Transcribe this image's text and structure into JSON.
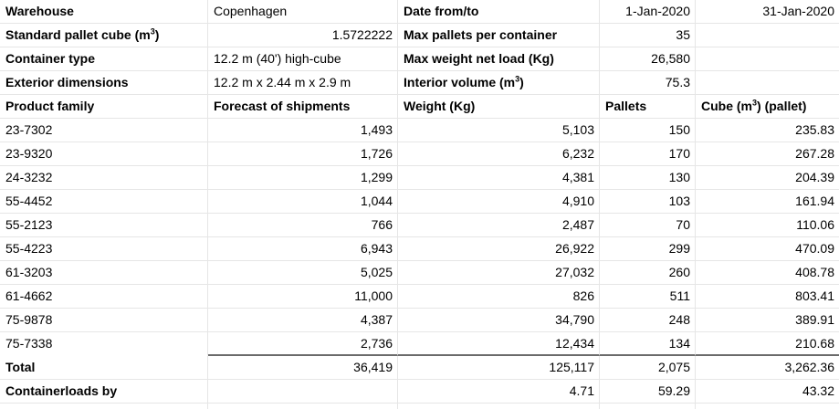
{
  "colors": {
    "grid": "#e6e6e6",
    "total_border": "#6b6b6b",
    "text": "#000000",
    "background": "#ffffff"
  },
  "info": [
    {
      "a": "Warehouse",
      "b": "Copenhagen",
      "c": "Date from/to",
      "d": "1-Jan-2020",
      "e": "31-Jan-2020"
    },
    {
      "a": {
        "pre": "Standard pallet cube (m",
        "sup": "3",
        "post": ")"
      },
      "b": "1.5722222",
      "c": "Max pallets per container",
      "d": "35"
    },
    {
      "a": "Container type",
      "b": "12.2 m (40') high-cube",
      "c": "Max weight net load (Kg)",
      "d": "26,580"
    },
    {
      "a": "Exterior dimensions",
      "b": "12.2 m x 2.44 m x 2.9 m",
      "c": {
        "pre": "Interior volume (m",
        "sup": "3",
        "post": ")"
      },
      "d": "75.3"
    }
  ],
  "header": {
    "a": "Product family",
    "b": "Forecast of shipments",
    "c": "Weight (Kg)",
    "d": "Pallets",
    "e": {
      "pre": "Cube (m",
      "sup": "3",
      "post": ") (pallet)"
    }
  },
  "products": [
    {
      "family": "23-7302",
      "forecast": "1,493",
      "weight": "5,103",
      "pallets": "150",
      "cube": "235.83"
    },
    {
      "family": "23-9320",
      "forecast": "1,726",
      "weight": "6,232",
      "pallets": "170",
      "cube": "267.28"
    },
    {
      "family": "24-3232",
      "forecast": "1,299",
      "weight": "4,381",
      "pallets": "130",
      "cube": "204.39"
    },
    {
      "family": "55-4452",
      "forecast": "1,044",
      "weight": "4,910",
      "pallets": "103",
      "cube": "161.94"
    },
    {
      "family": "55-2123",
      "forecast": "766",
      "weight": "2,487",
      "pallets": "70",
      "cube": "110.06"
    },
    {
      "family": "55-4223",
      "forecast": "6,943",
      "weight": "26,922",
      "pallets": "299",
      "cube": "470.09"
    },
    {
      "family": "61-3203",
      "forecast": "5,025",
      "weight": "27,032",
      "pallets": "260",
      "cube": "408.78"
    },
    {
      "family": "61-4662",
      "forecast": "11,000",
      "weight": "826",
      "pallets": "511",
      "cube": "803.41"
    },
    {
      "family": "75-9878",
      "forecast": "4,387",
      "weight": "34,790",
      "pallets": "248",
      "cube": "389.91"
    },
    {
      "family": "75-7338",
      "forecast": "2,736",
      "weight": "12,434",
      "pallets": "134",
      "cube": "210.68"
    }
  ],
  "total": {
    "label": "Total",
    "forecast": "36,419",
    "weight": "125,117",
    "pallets": "2,075",
    "cube": "3,262.36"
  },
  "containerloads": {
    "label": "Containerloads by",
    "weight": "4.71",
    "pallets": "59.29",
    "cube": "43.32"
  }
}
